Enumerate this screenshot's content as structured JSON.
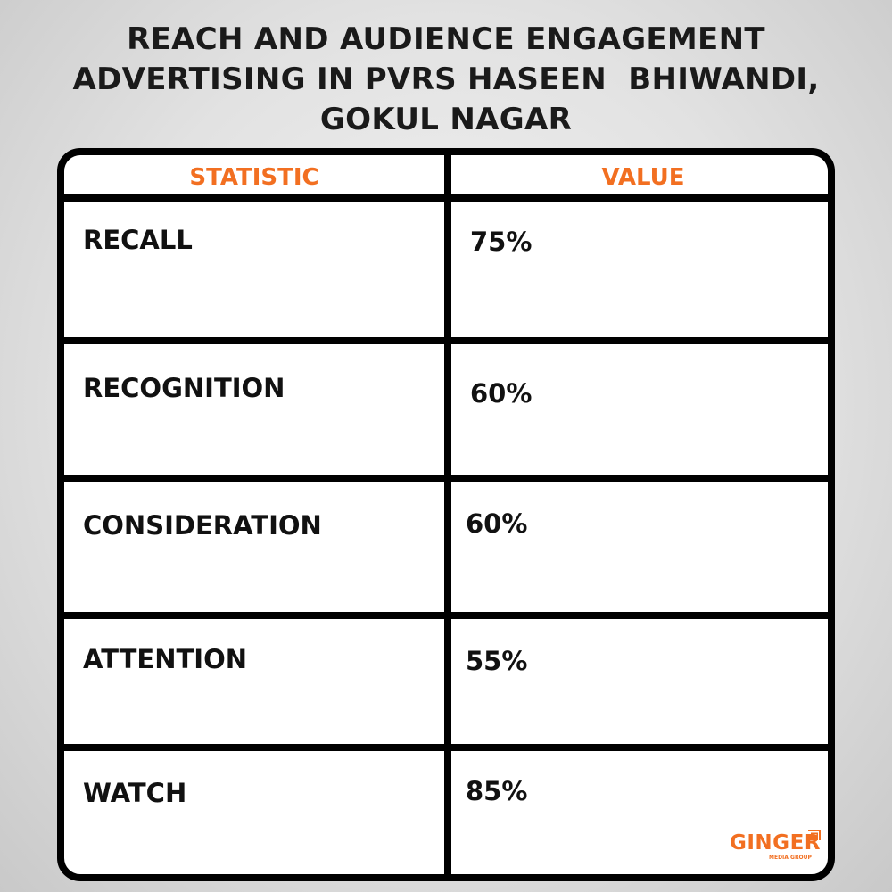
{
  "title_lines": [
    "REACH AND AUDIENCE ENGAGEMENT",
    "ADVERTISING IN PVRS HASEEN  BHIWANDI,",
    "GOKUL NAGAR"
  ],
  "table": {
    "headers": [
      "STATISTIC",
      "VALUE"
    ],
    "rows": [
      {
        "statistic": "RECALL",
        "value": "75%"
      },
      {
        "statistic": "RECOGNITION",
        "value": "60%"
      },
      {
        "statistic": "CONSIDERATION",
        "value": "60%"
      },
      {
        "statistic": "ATTENTION",
        "value": "55%"
      },
      {
        "statistic": "WATCH",
        "value": "85%"
      }
    ]
  },
  "logo": {
    "name": "GINGER",
    "subtitle": "MEDIA GROUP"
  },
  "colors": {
    "accent": "#f26f21",
    "border": "#000000",
    "text": "#111111"
  }
}
